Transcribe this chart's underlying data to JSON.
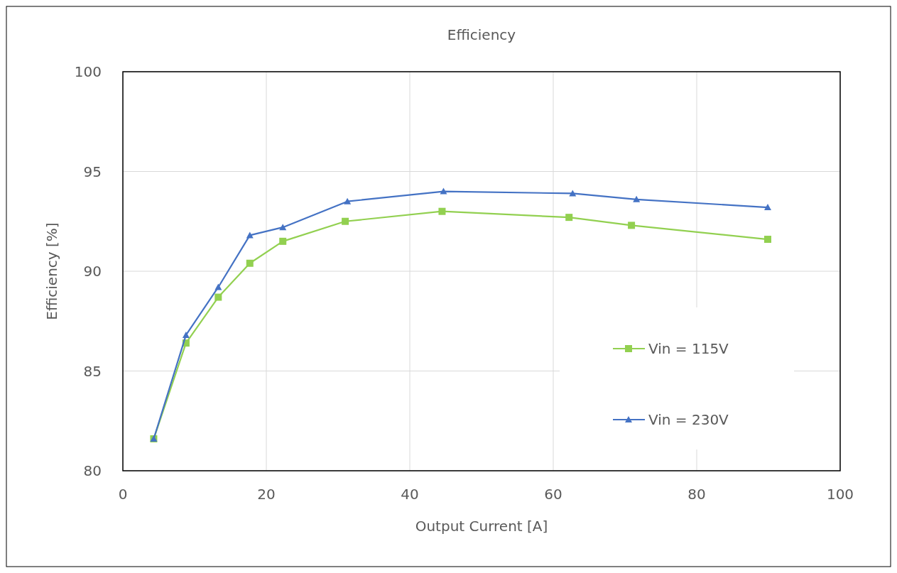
{
  "chart_data": {
    "type": "line",
    "title": "Efficiency",
    "xlabel": "Output Current  [A]",
    "ylabel": "Efficiency  [%]",
    "xlim": [
      0,
      100
    ],
    "xticks": [
      0,
      20,
      40,
      60,
      80,
      100
    ],
    "ylim": [
      80,
      100
    ],
    "yticks": [
      80,
      85,
      90,
      95,
      100
    ],
    "grid": true,
    "legend": "bottom right",
    "series": [
      {
        "name": "Vin = 115V",
        "color": "#92d050",
        "marker": "square",
        "x": [
          4.3,
          8.8,
          13.3,
          17.7,
          22.3,
          31.0,
          44.5,
          62.2,
          70.9,
          89.9
        ],
        "values": [
          81.6,
          86.4,
          88.7,
          90.4,
          91.5,
          92.5,
          93.0,
          92.7,
          92.3,
          91.6
        ]
      },
      {
        "name": "Vin = 230V",
        "color": "#4472c4",
        "marker": "triangle",
        "x": [
          4.3,
          8.8,
          13.3,
          17.7,
          22.3,
          31.3,
          44.7,
          62.7,
          71.6,
          89.9
        ],
        "values": [
          81.6,
          86.8,
          89.2,
          91.8,
          92.2,
          93.5,
          94.0,
          93.9,
          93.6,
          93.2
        ]
      }
    ]
  }
}
